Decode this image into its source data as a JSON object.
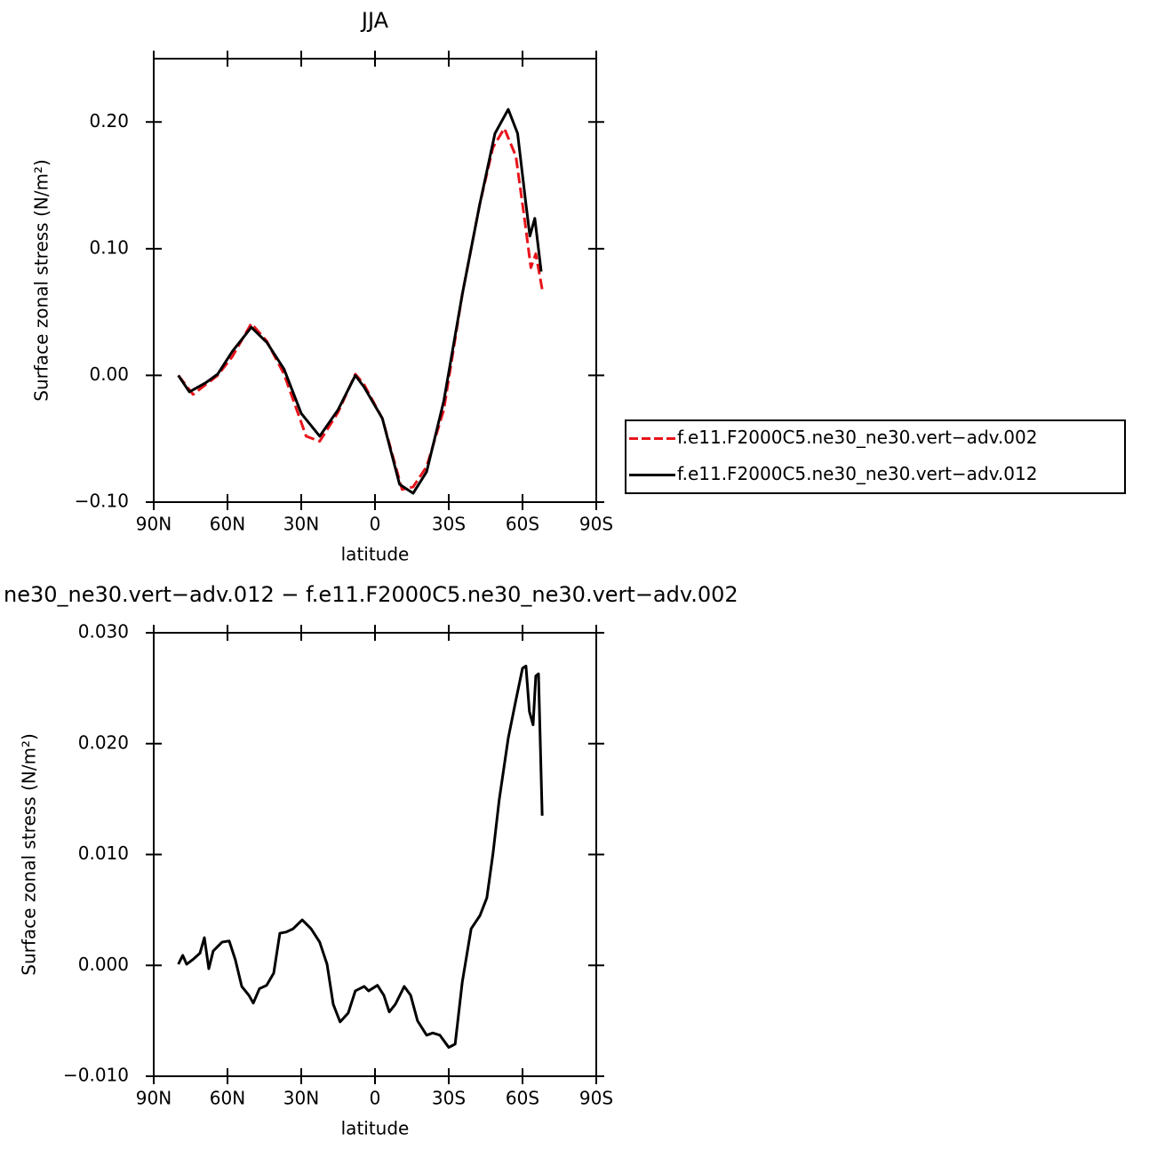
{
  "chart_data": [
    {
      "type": "line",
      "title": "JJA",
      "x_label": "latitude",
      "y_label": "Surface zonal stress (N/m²)",
      "xlim": [
        90,
        -90
      ],
      "xticks": [
        {
          "value": 90,
          "label": "90N"
        },
        {
          "value": 60,
          "label": "60N"
        },
        {
          "value": 30,
          "label": "30N"
        },
        0,
        {
          "value": -30,
          "label": "30S"
        },
        {
          "value": -60,
          "label": "60S"
        },
        {
          "value": -90,
          "label": "90S"
        }
      ],
      "ylim": [
        -0.1,
        0.25
      ],
      "yticks": [
        {
          "value": -0.1,
          "label": "−0.10"
        },
        {
          "value": 0,
          "label": "0.00"
        },
        {
          "value": 0.1,
          "label": "0.10"
        },
        {
          "value": 0.2,
          "label": "0.20"
        }
      ],
      "legend": "right",
      "series": [
        {
          "name": "f.e11.F2000C5.ne30_ne30.vert−adv.002",
          "color": "#e8141b",
          "dash": true,
          "x": [
            80,
            74,
            64,
            58,
            50.3,
            44,
            37,
            28,
            22.5,
            15,
            8,
            4.5,
            -3,
            -11,
            -15.5,
            -21,
            -28,
            -35.5,
            -42.6,
            -48,
            -52.6,
            -57.3,
            -61,
            -63.4,
            -65.4,
            -68
          ],
          "values": [
            0.0,
            -0.015,
            0.0,
            0.015,
            0.041,
            0.027,
            0.001,
            -0.048,
            -0.052,
            -0.029,
            0.001,
            -0.007,
            -0.034,
            -0.09,
            -0.088,
            -0.072,
            -0.027,
            0.064,
            0.135,
            0.18,
            0.195,
            0.173,
            0.121,
            0.085,
            0.096,
            0.068
          ]
        },
        {
          "name": "f.e11.F2000C5.ne30_ne30.vert−adv.012",
          "color": "#000000",
          "dash": false,
          "x": [
            80,
            75.5,
            69,
            64,
            58,
            50.3,
            44,
            37,
            30,
            22.5,
            15,
            8,
            4.5,
            -3,
            -10,
            -15.5,
            -21,
            -28,
            -35.5,
            -42.6,
            -48.8,
            -54.2,
            -58,
            -61.4,
            -63,
            -65,
            -67.6
          ],
          "values": [
            0.0,
            -0.013,
            -0.006,
            0.001,
            0.019,
            0.038,
            0.026,
            0.005,
            -0.03,
            -0.048,
            -0.027,
            0.0,
            -0.009,
            -0.034,
            -0.086,
            -0.093,
            -0.076,
            -0.02,
            0.064,
            0.135,
            0.191,
            0.21,
            0.191,
            0.135,
            0.11,
            0.124,
            0.082
          ]
        }
      ]
    },
    {
      "type": "line",
      "title": "ne30_ne30.vert−adv.012 − f.e11.F2000C5.ne30_ne30.vert−adv.002",
      "x_label": "latitude",
      "y_label": "Surface zonal stress (N/m²)",
      "xlim": [
        90,
        -90
      ],
      "xticks": [
        {
          "value": 90,
          "label": "90N"
        },
        {
          "value": 60,
          "label": "60N"
        },
        {
          "value": 30,
          "label": "30N"
        },
        0,
        {
          "value": -30,
          "label": "30S"
        },
        {
          "value": -60,
          "label": "60S"
        },
        {
          "value": -90,
          "label": "90S"
        }
      ],
      "ylim": [
        -0.01,
        0.03
      ],
      "yticks": [
        {
          "value": -0.01,
          "label": "−0.010"
        },
        {
          "value": 0,
          "label": "0.000"
        },
        {
          "value": 0.01,
          "label": "0.010"
        },
        {
          "value": 0.02,
          "label": "0.020"
        },
        {
          "value": 0.03,
          "label": "0.030"
        }
      ],
      "color": "#000000",
      "x": [
        80,
        78.2,
        76.6,
        73.7,
        71.2,
        69.4,
        67.6,
        65.8,
        62.2,
        59.3,
        56.8,
        54.2,
        51.3,
        49.5,
        47,
        44.1,
        41.2,
        38.7,
        36.2,
        33.3,
        29.6,
        26,
        22.5,
        19.5,
        17,
        14.2,
        10.9,
        8,
        4.4,
        2.6,
        -1,
        -3.6,
        -5.8,
        -8.3,
        -11.9,
        -14.5,
        -17.3,
        -21,
        -23.5,
        -26.4,
        -30,
        -32.6,
        -35.5,
        -39.1,
        -42.7,
        -45.5,
        -48,
        -50.5,
        -54.2,
        -57.1,
        -60,
        -61.4,
        -62.8,
        -64.3,
        -65.4,
        -66.5,
        -68
      ],
      "values": [
        0.0001,
        0.0009,
        0.0001,
        0.0006,
        0.0011,
        0.0025,
        -0.0003,
        0.0013,
        0.0021,
        0.0022,
        0.0005,
        -0.0019,
        -0.0027,
        -0.0034,
        -0.0021,
        -0.0018,
        -0.0007,
        0.0029,
        0.003,
        0.0033,
        0.0041,
        0.0033,
        0.0021,
        0.0001,
        -0.0035,
        -0.0051,
        -0.0043,
        -0.0023,
        -0.0019,
        -0.0023,
        -0.0018,
        -0.0027,
        -0.0042,
        -0.0035,
        -0.0019,
        -0.0027,
        -0.005,
        -0.0063,
        -0.0061,
        -0.0063,
        -0.0074,
        -0.0071,
        -0.0015,
        0.0033,
        0.0045,
        0.0061,
        0.0101,
        0.0149,
        0.0205,
        0.0237,
        0.0268,
        0.027,
        0.0229,
        0.0217,
        0.0261,
        0.0263,
        0.0135
      ]
    }
  ]
}
